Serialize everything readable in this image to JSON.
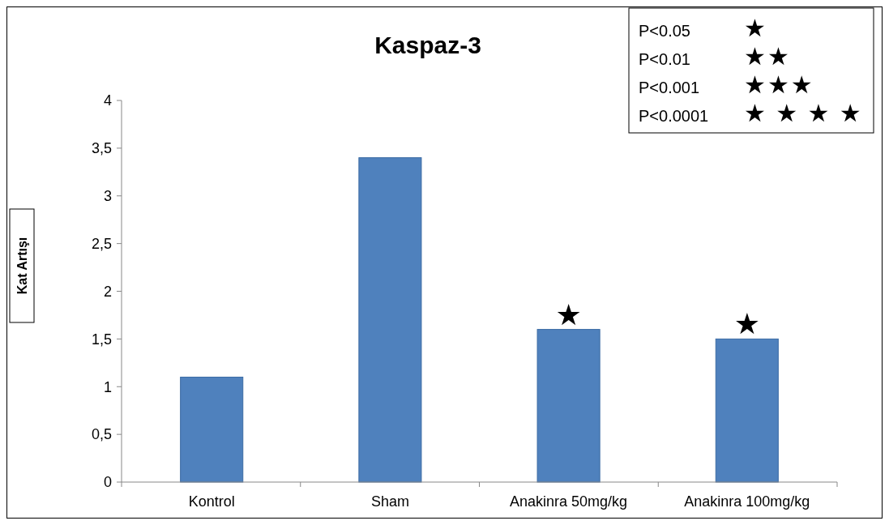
{
  "chart_data": {
    "type": "bar",
    "title": "Kaspaz-3",
    "ylabel": "Kat Artışı",
    "categories": [
      "Kontrol",
      "Sham",
      "Anakinra 50mg/kg",
      "Anakinra 100mg/kg"
    ],
    "values": [
      1.1,
      3.4,
      1.6,
      1.5
    ],
    "color": "#4f81bd",
    "ylim": [
      0,
      4
    ],
    "yticks": [
      0,
      {
        "value": 0.5,
        "label": "0,5"
      },
      1,
      {
        "value": 1.5,
        "label": "1,5"
      },
      2,
      {
        "value": 2.5,
        "label": "2,5"
      },
      3,
      {
        "value": 3.5,
        "label": "3,5"
      },
      4
    ],
    "grid": false,
    "annotations": [
      {
        "text": "★",
        "x": "Anakinra 50mg/kg",
        "y": 1.6
      },
      {
        "text": "★",
        "x": "Anakinra 100mg/kg",
        "y": 1.5
      },
      "P<0.05 ★",
      "P<0.01 ★★",
      "P<0.001 ★★★",
      "P<0.0001 ★ ★ ★ ★"
    ]
  }
}
